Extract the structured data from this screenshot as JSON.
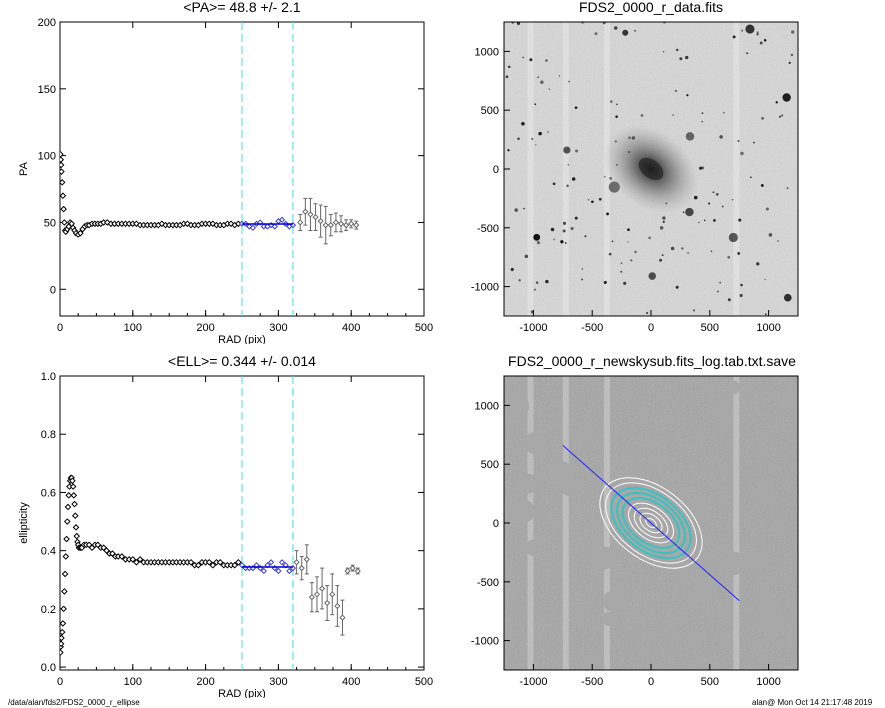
{
  "chart_data": [
    {
      "type": "scatter",
      "title": "<PA>=  48.8 +/-   2.1",
      "xlabel": "RAD (pix)",
      "ylabel": "PA",
      "xlim": [
        0,
        500
      ],
      "ylim": [
        -20,
        200
      ],
      "xticks": [
        "0",
        "100",
        "200",
        "300",
        "400",
        "500"
      ],
      "yticks": [
        "0",
        "50",
        "100",
        "150",
        "200"
      ],
      "vlines": [
        250,
        320
      ],
      "fit": {
        "x": [
          250,
          320
        ],
        "y": 48.8
      },
      "series": [
        {
          "x": [
            0.5,
            1,
            1.5,
            2,
            3,
            4,
            5,
            6,
            7,
            8,
            10,
            12,
            14,
            16,
            18,
            20,
            22,
            25,
            28,
            31,
            34,
            37,
            40,
            44,
            48,
            52,
            56,
            60,
            65,
            70,
            75,
            80,
            85,
            90,
            95,
            100,
            105,
            110,
            115,
            120,
            125,
            130,
            135,
            140,
            145,
            150,
            155,
            160,
            165,
            170,
            175,
            180,
            185,
            190,
            195,
            200,
            205,
            210,
            215,
            220,
            225,
            230,
            235,
            240,
            245
          ],
          "y": [
            101,
            97,
            93,
            88,
            80,
            70,
            60,
            50,
            44,
            43,
            45,
            47,
            50,
            49,
            46,
            44,
            42,
            41,
            42,
            45,
            47,
            48,
            48,
            49,
            49,
            49,
            49,
            50,
            50,
            49,
            49,
            49,
            49,
            49,
            49,
            49,
            49,
            48,
            48,
            48,
            48,
            48,
            48,
            49,
            48,
            48,
            48,
            48,
            48,
            49,
            49,
            48,
            48,
            48,
            49,
            49,
            49,
            49,
            48,
            48,
            48,
            49,
            49,
            48,
            49
          ]
        },
        {
          "x": [
            250,
            255,
            260,
            265,
            270,
            275,
            280,
            285,
            290,
            295,
            300,
            305,
            310,
            315,
            320
          ],
          "y": [
            49,
            49,
            47,
            46,
            49,
            50,
            47,
            47,
            48,
            47,
            51,
            52,
            49,
            47,
            48
          ]
        },
        {
          "x": [
            330,
            337,
            344,
            351,
            358,
            365,
            372,
            379,
            386,
            393,
            400,
            407
          ],
          "y": [
            50,
            58,
            56,
            54,
            51,
            48,
            48,
            50,
            49,
            48,
            49,
            48
          ],
          "err": [
            6,
            10,
            12,
            10,
            12,
            14,
            8,
            7,
            6,
            4,
            3,
            3
          ]
        }
      ]
    },
    {
      "type": "image",
      "title": "FDS2_0000_r_data.fits",
      "xlim": [
        -1250,
        1250
      ],
      "ylim": [
        -1250,
        1250
      ],
      "xticks": [
        "-1000",
        "-500",
        "0",
        "500",
        "1000"
      ],
      "yticks": [
        "-1000",
        "-500",
        "0",
        "500",
        "1000"
      ]
    },
    {
      "type": "scatter",
      "title": "<ELL>= 0.344 +/-  0.014",
      "xlabel": "RAD (pix)",
      "ylabel": "ellipticity",
      "xlim": [
        0,
        500
      ],
      "ylim": [
        -0.01,
        1.0
      ],
      "xticks": [
        "0",
        "100",
        "200",
        "300",
        "400",
        "500"
      ],
      "yticks": [
        "0.0",
        "0.2",
        "0.4",
        "0.6",
        "0.8",
        "1.0"
      ],
      "vlines": [
        250,
        320
      ],
      "fit": {
        "x": [
          250,
          320
        ],
        "y": 0.344
      },
      "series": [
        {
          "x": [
            0.5,
            1,
            1.5,
            2,
            3,
            4,
            5,
            6,
            7,
            8,
            9,
            10,
            11,
            12,
            13,
            14,
            15,
            16,
            17,
            18,
            19,
            20,
            21,
            22,
            23,
            24,
            25,
            26,
            28,
            30,
            33,
            36,
            40,
            44,
            48,
            52,
            56,
            60,
            64,
            68,
            72,
            76,
            80,
            85,
            90,
            95,
            100,
            105,
            110,
            115,
            120,
            125,
            130,
            135,
            140,
            145,
            150,
            155,
            160,
            165,
            170,
            175,
            180,
            185,
            190,
            195,
            200,
            205,
            210,
            215,
            220,
            225,
            230,
            235,
            240,
            245
          ],
          "y": [
            0.05,
            0.07,
            0.08,
            0.1,
            0.12,
            0.15,
            0.2,
            0.26,
            0.32,
            0.38,
            0.44,
            0.5,
            0.55,
            0.59,
            0.62,
            0.64,
            0.65,
            0.65,
            0.64,
            0.62,
            0.59,
            0.56,
            0.52,
            0.48,
            0.45,
            0.43,
            0.42,
            0.41,
            0.41,
            0.41,
            0.42,
            0.42,
            0.42,
            0.41,
            0.42,
            0.42,
            0.41,
            0.41,
            0.4,
            0.39,
            0.39,
            0.38,
            0.38,
            0.38,
            0.37,
            0.37,
            0.37,
            0.36,
            0.37,
            0.36,
            0.36,
            0.36,
            0.36,
            0.36,
            0.36,
            0.36,
            0.36,
            0.36,
            0.36,
            0.36,
            0.36,
            0.36,
            0.36,
            0.35,
            0.35,
            0.36,
            0.36,
            0.36,
            0.35,
            0.36,
            0.36,
            0.35,
            0.35,
            0.35,
            0.35,
            0.36
          ]
        },
        {
          "x": [
            250,
            255,
            260,
            265,
            270,
            275,
            280,
            285,
            290,
            295,
            300,
            305,
            310,
            315,
            320
          ],
          "y": [
            0.35,
            0.34,
            0.34,
            0.34,
            0.35,
            0.34,
            0.33,
            0.35,
            0.36,
            0.34,
            0.33,
            0.36,
            0.35,
            0.33,
            0.34
          ]
        },
        {
          "x": [
            325,
            332,
            339,
            346,
            353,
            360,
            367,
            374,
            381,
            388,
            395,
            402,
            409
          ],
          "y": [
            0.36,
            0.34,
            0.37,
            0.24,
            0.25,
            0.27,
            0.22,
            0.25,
            0.21,
            0.17,
            0.33,
            0.34,
            0.33
          ],
          "err": [
            0.04,
            0.04,
            0.05,
            0.05,
            0.06,
            0.07,
            0.06,
            0.07,
            0.07,
            0.06,
            0.01,
            0.01,
            0.01
          ]
        }
      ]
    },
    {
      "type": "image",
      "title": "FDS2_0000_r_newskysub.fits_log.tab.txt.save",
      "xlim": [
        -1250,
        1250
      ],
      "ylim": [
        -1250,
        1250
      ],
      "xticks": [
        "-1000",
        "-500",
        "0",
        "500",
        "1000"
      ],
      "yticks": [
        "-1000",
        "-500",
        "0",
        "500",
        "1000"
      ]
    }
  ],
  "footer": {
    "left": "/data/alan/fds2/FDS2_0000_r_ellipse",
    "right": "alan@  Mon Oct 14 21:17:48 2019"
  },
  "colors": {
    "data": "#000000",
    "outer": "#666666",
    "fit_points": "#3a3ad0",
    "fit_line": "#0000cc",
    "vline": "#40e0e0",
    "image_bg": "#9a9a9a",
    "isophote_outer": "#ffffff",
    "isophote_inner": "#40c0c0",
    "major_axis": "#2020ff"
  }
}
